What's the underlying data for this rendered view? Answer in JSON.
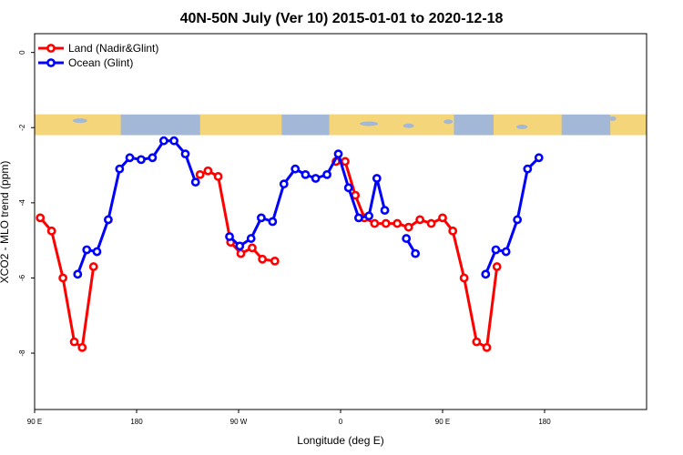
{
  "chart_data": {
    "type": "line",
    "title": "40N-50N July (Ver 10)   2015-01-01 to 2020-12-18",
    "xlabel": "Longitude (deg E)",
    "ylabel": "XCO2 - MLO trend (ppm)",
    "xlim": [
      90,
      630
    ],
    "ylim": [
      -9.5,
      0.5
    ],
    "x_ticks": [
      {
        "value": 90,
        "label": "90 E"
      },
      {
        "value": 180,
        "label": "180"
      },
      {
        "value": 270,
        "label": "90 W"
      },
      {
        "value": 360,
        "label": "0"
      },
      {
        "value": 450,
        "label": "90 E"
      },
      {
        "value": 540,
        "label": "180"
      }
    ],
    "y_ticks": [
      {
        "value": 0,
        "label": "0"
      },
      {
        "value": -2,
        "label": "-2"
      },
      {
        "value": -4,
        "label": "-4"
      },
      {
        "value": -6,
        "label": "-6"
      },
      {
        "value": -8,
        "label": "-8"
      }
    ],
    "map_strip": {
      "y_top": -1.65,
      "y_bottom": -2.2,
      "ocean_color": "#a3b8d6",
      "land_color": "#f5d57a"
    },
    "legend_position": "top-left",
    "grid": false,
    "series": [
      {
        "name": "Land (Nadir&Glint)",
        "color": "#ff0000",
        "segments": [
          {
            "x": [
              95,
              105,
              115,
              125,
              132,
              142
            ],
            "y": [
              -4.4,
              -4.75,
              -6.0,
              -7.7,
              -7.85,
              -5.7
            ]
          },
          {
            "x": [
              236,
              243,
              252,
              263,
              272,
              282,
              291,
              302
            ],
            "y": [
              -3.25,
              -3.15,
              -3.3,
              -5.05,
              -5.35,
              -5.2,
              -5.5,
              -5.55
            ]
          },
          {
            "x": [
              356,
              364,
              373,
              381,
              390,
              400,
              410,
              420,
              430,
              440,
              450,
              459,
              469,
              480,
              489,
              498,
              508
            ],
            "y": [
              -2.9,
              -2.9,
              -3.8,
              -4.4,
              -4.55,
              -4.55,
              -4.55,
              -4.65,
              -4.45,
              -4.55,
              -4.4,
              -4.75,
              -6.0,
              -7.7,
              -7.85,
              -5.7,
              null
            ]
          }
        ]
      },
      {
        "name": "Ocean (Glint)",
        "color": "#0000ff",
        "segments": [
          {
            "x": [
              128,
              136,
              145,
              155,
              165,
              174,
              184,
              194,
              204,
              213,
              223,
              232
            ],
            "y": [
              -5.9,
              -5.25,
              -5.3,
              -4.45,
              -3.1,
              -2.8,
              -2.85,
              -2.8,
              -2.35,
              -2.35,
              -2.7,
              -3.45
            ]
          },
          {
            "x": [
              262,
              271,
              281,
              290,
              300,
              310,
              320,
              329,
              338,
              348,
              358,
              367,
              376,
              385,
              392,
              399,
              403
            ],
            "y": [
              -4.9,
              -5.15,
              -4.95,
              -4.4,
              -4.5,
              -3.5,
              -3.1,
              -3.25,
              -3.35,
              -3.25,
              -2.7,
              -3.6,
              -4.4,
              -4.35,
              -3.35,
              -4.2,
              null
            ]
          },
          {
            "x": [
              418,
              426
            ],
            "y": [
              -4.95,
              -5.35
            ]
          },
          {
            "x": [
              488,
              497,
              506,
              516,
              525,
              535,
              545
            ],
            "y": [
              -5.9,
              -5.25,
              -5.3,
              -4.45,
              -3.1,
              -2.8,
              null
            ]
          }
        ]
      }
    ]
  }
}
